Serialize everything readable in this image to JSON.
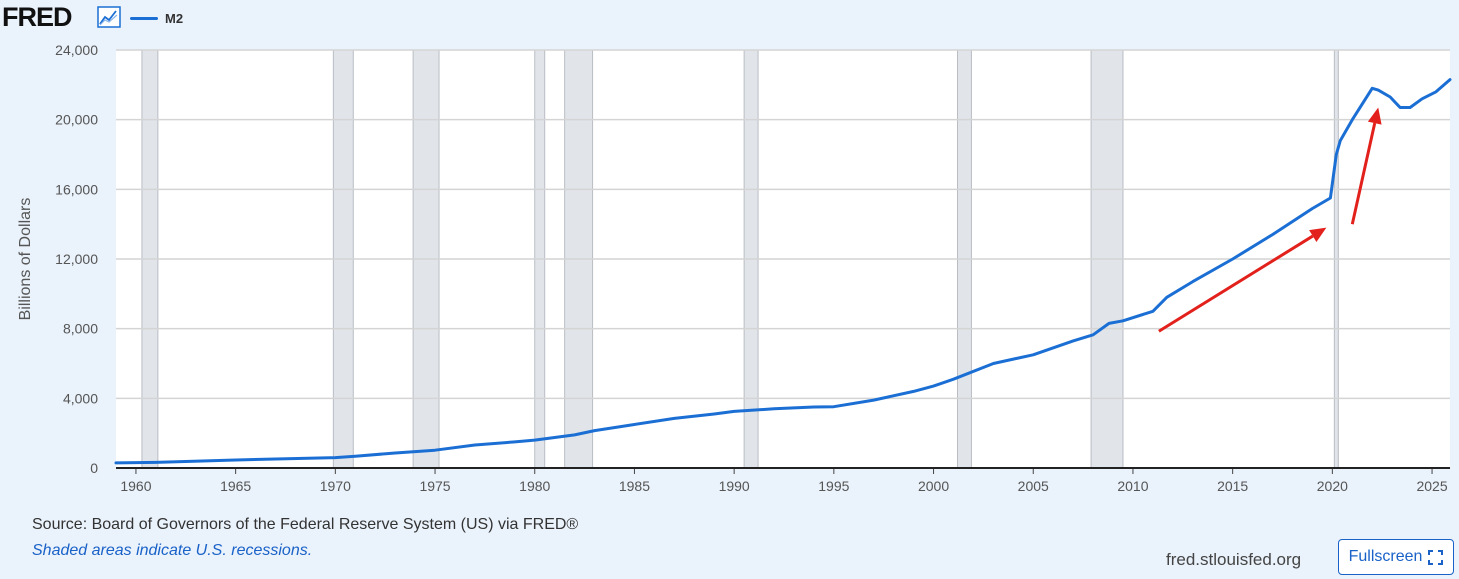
{
  "header": {
    "logo_text": "FRED",
    "logo_icon": "line-chart-icon",
    "legend_label": "M2",
    "legend_color": "#1b6fd4"
  },
  "chart_data": {
    "type": "line",
    "title": "",
    "xlabel": "",
    "ylabel": "Billions of Dollars",
    "xlim": [
      1959,
      2025.9
    ],
    "ylim": [
      0,
      24000
    ],
    "y_ticks": [
      0,
      4000,
      8000,
      12000,
      16000,
      20000,
      24000
    ],
    "y_tick_labels": [
      "0",
      "4,000",
      "8,000",
      "12,000",
      "16,000",
      "20,000",
      "24,000"
    ],
    "x_ticks": [
      1960,
      1965,
      1970,
      1975,
      1980,
      1985,
      1990,
      1995,
      2000,
      2005,
      2010,
      2015,
      2020,
      2025
    ],
    "x_tick_labels": [
      "1960",
      "1965",
      "1970",
      "1975",
      "1980",
      "1985",
      "1990",
      "1995",
      "2000",
      "2005",
      "2010",
      "2015",
      "2020",
      "2025"
    ],
    "grid": true,
    "series": [
      {
        "name": "M2",
        "color": "#1b6fd4",
        "x": [
          1959.0,
          1961.0,
          1965.0,
          1970.0,
          1971.0,
          1973.0,
          1975.0,
          1977.0,
          1979.0,
          1980.0,
          1982.0,
          1983.0,
          1985.0,
          1987.0,
          1989.0,
          1990.0,
          1992.0,
          1994.0,
          1995.0,
          1997.0,
          1999.0,
          2000.0,
          2001.0,
          2003.0,
          2005.0,
          2007.0,
          2008.0,
          2008.8,
          2009.5,
          2011.0,
          2011.7,
          2013.0,
          2015.0,
          2017.0,
          2019.0,
          2019.9,
          2020.2,
          2020.4,
          2021.0,
          2022.0,
          2022.3,
          2022.9,
          2023.4,
          2023.9,
          2024.5,
          2025.2,
          2025.9
        ],
        "y": [
          290,
          320,
          460,
          600,
          680,
          860,
          1020,
          1320,
          1500,
          1600,
          1900,
          2150,
          2500,
          2850,
          3100,
          3250,
          3400,
          3500,
          3520,
          3900,
          4400,
          4700,
          5100,
          6000,
          6500,
          7300,
          7650,
          8300,
          8450,
          9000,
          9800,
          10700,
          12000,
          13400,
          14900,
          15500,
          18000,
          18800,
          20000,
          21800,
          21700,
          21300,
          20700,
          20700,
          21200,
          21600,
          22300
        ]
      }
    ],
    "recessions": [
      [
        1960.3,
        1961.1
      ],
      [
        1969.9,
        1970.9
      ],
      [
        1973.9,
        1975.2
      ],
      [
        1980.0,
        1980.5
      ],
      [
        1981.5,
        1982.9
      ],
      [
        1990.5,
        1991.2
      ],
      [
        2001.2,
        2001.9
      ],
      [
        2007.9,
        2009.5
      ],
      [
        2020.1,
        2020.3
      ]
    ],
    "recession_color": "#e1e5ea",
    "arrows": [
      {
        "from": [
          2011.3,
          7850
        ],
        "to": [
          2019.7,
          13800
        ],
        "color": "#e3211c"
      },
      {
        "from": [
          2021.0,
          14000
        ],
        "to": [
          2022.3,
          20700
        ],
        "color": "#e3211c"
      }
    ]
  },
  "footer": {
    "source": "Source: Board of Governors of the Federal Reserve System (US) via FRED®",
    "recession_note": "Shaded areas indicate U.S. recessions.",
    "site": "fred.stlouisfed.org",
    "fullscreen_label": "Fullscreen",
    "fullscreen_icon": "expand-icon"
  }
}
